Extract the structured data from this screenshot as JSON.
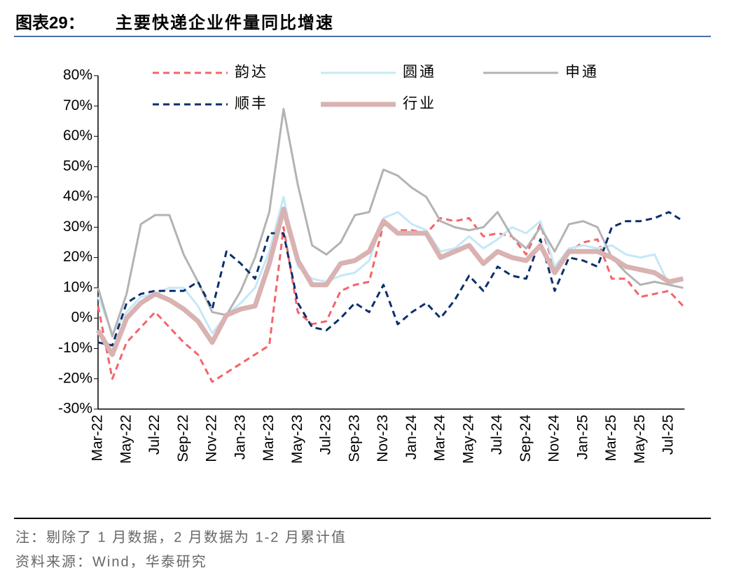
{
  "header": {
    "label": "图表29：",
    "title": "主要快递企业件量同比增速"
  },
  "chart_data": {
    "type": "line",
    "categories": [
      "Mar-22",
      null,
      "May-22",
      null,
      "Jul-22",
      null,
      "Sep-22",
      null,
      "Nov-22",
      null,
      "Jan-23",
      null,
      "Mar-23",
      null,
      "May-23",
      null,
      "Jul-23",
      null,
      "Sep-23",
      null,
      "Nov-23",
      null,
      "Jan-24",
      null,
      "Mar-24",
      null,
      "May-24",
      null,
      "Jul-24",
      null,
      "Sep-24",
      null,
      "Nov-24",
      null,
      "Jan-25",
      null,
      "Mar-25",
      null,
      "May-25",
      null,
      "Jul-25",
      null
    ],
    "ylim": [
      -30,
      80
    ],
    "yticks": [
      {
        "value": -30,
        "label": "-30%"
      },
      {
        "value": -20,
        "label": "-20%"
      },
      {
        "value": -10,
        "label": "-10%"
      },
      {
        "value": 0,
        "label": "0%"
      },
      {
        "value": 10,
        "label": "10%"
      },
      {
        "value": 20,
        "label": "20%"
      },
      {
        "value": 30,
        "label": "30%"
      },
      {
        "value": 40,
        "label": "40%"
      },
      {
        "value": 50,
        "label": "50%"
      },
      {
        "value": 60,
        "label": "60%"
      },
      {
        "value": 70,
        "label": "70%"
      },
      {
        "value": 80,
        "label": "80%"
      }
    ],
    "grid": false,
    "legend": "top",
    "series": [
      {
        "name": "韵达",
        "color": "#f4646a",
        "dashed": true,
        "values": [
          4,
          -20,
          -8,
          -3,
          2,
          -3,
          -8,
          -12,
          -21,
          -18,
          -15,
          -12,
          -9,
          30,
          2,
          -2,
          -1,
          9,
          11,
          12,
          31,
          29,
          29,
          28,
          33,
          32,
          33,
          27,
          28,
          27,
          21,
          31,
          16,
          22,
          25,
          26,
          13,
          13,
          7,
          8,
          9,
          4
        ]
      },
      {
        "name": "圆通",
        "color": "#c5e8f7",
        "dashed": false,
        "values": [
          7,
          -5,
          2,
          7,
          8,
          10,
          10,
          4,
          -5,
          1,
          5,
          10,
          22,
          40,
          17,
          13,
          12,
          14,
          15,
          19,
          33,
          35,
          31,
          29,
          22,
          23,
          27,
          23,
          26,
          30,
          28,
          32,
          17,
          23,
          24,
          23,
          24,
          21,
          20,
          21,
          11,
          13
        ]
      },
      {
        "name": "申通",
        "color": "#b3b3b3",
        "dashed": false,
        "values": [
          10,
          -6,
          8,
          31,
          34,
          34,
          21,
          12,
          2,
          1,
          9,
          20,
          35,
          69,
          44,
          24,
          21,
          25,
          34,
          35,
          49,
          47,
          43,
          40,
          32,
          30,
          29,
          30,
          35,
          27,
          23,
          30,
          22,
          31,
          32,
          30,
          20,
          15,
          11,
          12,
          11,
          10
        ]
      },
      {
        "name": "顺丰",
        "color": "#0b2f6b",
        "dashed": true,
        "values": [
          -8,
          -9,
          5,
          8,
          9,
          9,
          9,
          12,
          3,
          22,
          18,
          13,
          28,
          28,
          5,
          -3,
          -4,
          0,
          5,
          2,
          11,
          -2,
          2,
          5,
          0,
          6,
          14,
          9,
          17,
          14,
          13,
          26,
          9,
          20,
          19,
          17,
          30,
          32,
          32,
          33,
          35,
          32
        ]
      },
      {
        "name": "行业",
        "color": "#d9b2b2",
        "dashed": false,
        "width": 7,
        "values": [
          -4,
          -12,
          0,
          5,
          8,
          6,
          3,
          -1,
          -8,
          1,
          3,
          4,
          18,
          36,
          19,
          11,
          11,
          18,
          19,
          22,
          32,
          28,
          28,
          28,
          20,
          22,
          24,
          18,
          22,
          20,
          19,
          24,
          15,
          22,
          22,
          22,
          20,
          17,
          16,
          15,
          12,
          13
        ]
      }
    ]
  },
  "notes": [
    "注：剔除了 1 月数据，2 月数据为 1-2 月累计值",
    "资料来源：Wind，华泰研究"
  ]
}
